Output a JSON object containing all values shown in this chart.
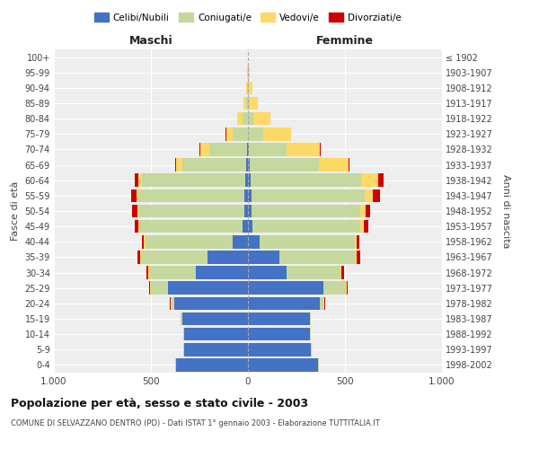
{
  "age_groups": [
    "0-4",
    "5-9",
    "10-14",
    "15-19",
    "20-24",
    "25-29",
    "30-34",
    "35-39",
    "40-44",
    "45-49",
    "50-54",
    "55-59",
    "60-64",
    "65-69",
    "70-74",
    "75-79",
    "80-84",
    "85-89",
    "90-94",
    "95-99",
    "100+"
  ],
  "birth_years": [
    "1998-2002",
    "1993-1997",
    "1988-1992",
    "1983-1987",
    "1978-1982",
    "1973-1977",
    "1968-1972",
    "1963-1967",
    "1958-1962",
    "1953-1957",
    "1948-1952",
    "1943-1947",
    "1938-1942",
    "1933-1937",
    "1928-1932",
    "1923-1927",
    "1918-1922",
    "1913-1917",
    "1908-1912",
    "1903-1907",
    "≤ 1902"
  ],
  "maschi": {
    "celibi": [
      370,
      330,
      330,
      340,
      380,
      410,
      270,
      210,
      80,
      30,
      20,
      20,
      15,
      10,
      5,
      0,
      0,
      0,
      0,
      0,
      0
    ],
    "coniugati": [
      5,
      5,
      5,
      5,
      15,
      90,
      240,
      340,
      450,
      530,
      545,
      545,
      530,
      330,
      195,
      80,
      30,
      10,
      5,
      2,
      0
    ],
    "vedovi": [
      0,
      0,
      0,
      0,
      5,
      5,
      5,
      5,
      5,
      5,
      5,
      10,
      20,
      30,
      45,
      30,
      25,
      15,
      5,
      2,
      0
    ],
    "divorziati": [
      0,
      0,
      0,
      0,
      5,
      5,
      10,
      15,
      10,
      20,
      25,
      25,
      20,
      5,
      5,
      5,
      0,
      0,
      0,
      0,
      0
    ]
  },
  "femmine": {
    "nubili": [
      360,
      325,
      320,
      320,
      370,
      390,
      200,
      160,
      60,
      25,
      20,
      20,
      15,
      10,
      5,
      0,
      0,
      0,
      0,
      0,
      0
    ],
    "coniugate": [
      5,
      5,
      5,
      5,
      20,
      115,
      275,
      395,
      490,
      555,
      560,
      580,
      570,
      355,
      195,
      80,
      30,
      10,
      5,
      2,
      0
    ],
    "vedove": [
      0,
      0,
      0,
      0,
      5,
      5,
      5,
      5,
      10,
      15,
      25,
      45,
      85,
      155,
      170,
      140,
      85,
      40,
      20,
      5,
      0
    ],
    "divorziate": [
      0,
      0,
      0,
      0,
      5,
      5,
      15,
      20,
      15,
      25,
      25,
      35,
      30,
      5,
      5,
      0,
      0,
      0,
      0,
      0,
      0
    ]
  },
  "colors": {
    "celibi": "#4472C4",
    "coniugati": "#C5D89D",
    "vedovi": "#FFD966",
    "divorziati": "#CC0000"
  },
  "xlim": 1000,
  "title": "Popolazione per età, sesso e stato civile - 2003",
  "subtitle": "COMUNE DI SELVAZZANO DENTRO (PD) - Dati ISTAT 1° gennaio 2003 - Elaborazione TUTTITALIA.IT",
  "ylabel_left": "Fasce di età",
  "ylabel_right": "Anni di nascita",
  "xlabel_left": "Maschi",
  "xlabel_right": "Femmine",
  "plot_bg": "#eeeeee",
  "background_color": "#ffffff",
  "grid_color": "#ffffff",
  "legend_labels": [
    "Celibi/Nubili",
    "Coniugati/e",
    "Vedovi/e",
    "Divorziati/e"
  ]
}
